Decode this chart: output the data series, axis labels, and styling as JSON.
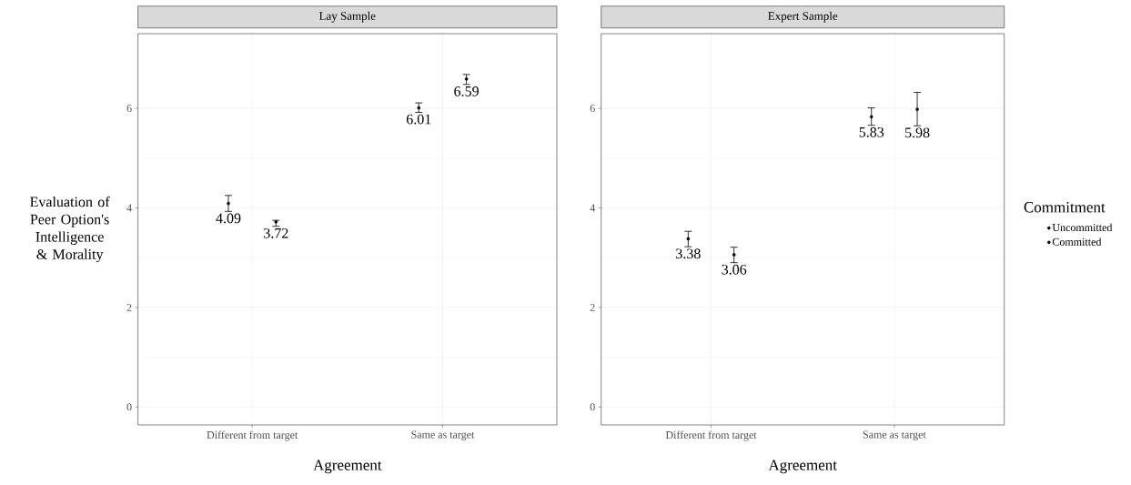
{
  "chart_data": [
    {
      "type": "scatter",
      "title": "Lay Sample",
      "xlabel": "Agreement",
      "ylabel": "Evaluation of Peer Option's Intelligence & Morality",
      "categories": [
        "Different from target",
        "Same as target"
      ],
      "series": [
        {
          "color": "#000000",
          "values": [
            4.09,
            6.01
          ],
          "errors": [
            [
              3.93,
              4.25
            ],
            [
              5.92,
              6.11
            ]
          ]
        },
        {
          "color": "#000000",
          "values": [
            3.72,
            6.59
          ],
          "errors": [
            [
              3.63,
              3.75
            ],
            [
              6.48,
              6.68
            ]
          ]
        }
      ],
      "ylim": [
        -0.36,
        7.5
      ],
      "yticks": [
        0,
        2,
        4,
        6
      ],
      "grid": true,
      "marker": "circle",
      "data_labels": true,
      "legend": false
    },
    {
      "type": "scatter",
      "title": "Expert Sample",
      "xlabel": "Agreement",
      "legend_title": "Commitment",
      "categories": [
        "Different from target",
        "Same as target"
      ],
      "series": [
        {
          "name": "Uncommitted",
          "color": "#000000",
          "values": [
            3.38,
            5.83
          ],
          "errors": [
            [
              3.22,
              3.53
            ],
            [
              5.66,
              6.01
            ]
          ]
        },
        {
          "name": "Committed",
          "color": "#000000",
          "values": [
            3.06,
            5.98
          ],
          "errors": [
            [
              2.9,
              3.21
            ],
            [
              5.65,
              6.32
            ]
          ]
        }
      ],
      "ylim": [
        -0.36,
        7.5
      ],
      "yticks": [
        0,
        2,
        4,
        6
      ],
      "grid": true,
      "marker": "circle",
      "data_labels": true,
      "legend": "right"
    }
  ]
}
